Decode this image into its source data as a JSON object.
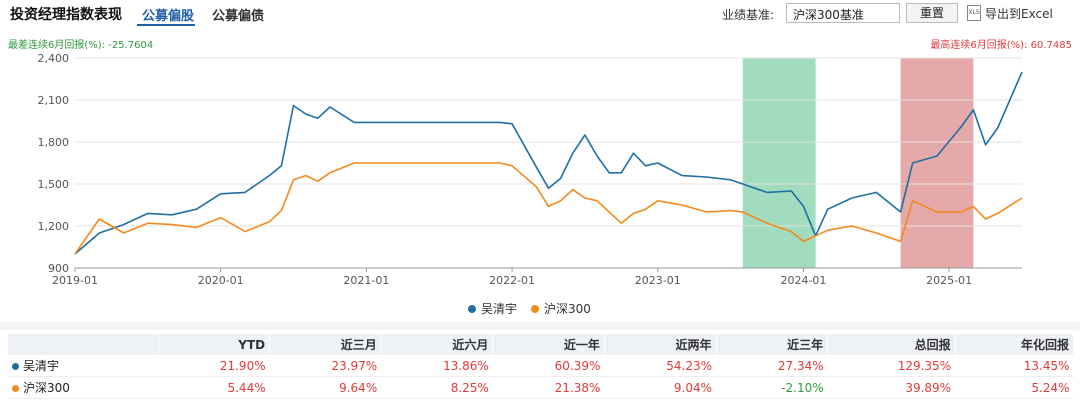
{
  "header": {
    "title": "投资经理指数表现",
    "tabs": [
      {
        "label": "公募偏股",
        "active": true
      },
      {
        "label": "公募偏债",
        "active": false
      }
    ],
    "benchmark_label": "业绩基准:",
    "benchmark_value": "沪深300基准",
    "reset_label": "重置",
    "export_icon": "excel-icon",
    "export_label": "导出到Excel"
  },
  "notes": {
    "worst": "最差连续6月回报(%): -25.7604",
    "best": "最高连续6月回报(%): 60.7485"
  },
  "colors": {
    "series1": "#1f6fa3",
    "series2": "#f28a1c",
    "worst_band": "#8fd6b2",
    "best_band": "#e09a9a",
    "positive": "#e23a3a",
    "negative": "#2f9a3c"
  },
  "chart_data": {
    "type": "line",
    "xlabel": "",
    "ylabel": "",
    "xlim": [
      "2019-01",
      "2025-07"
    ],
    "ylim": [
      900,
      2400
    ],
    "yticks": [
      "900",
      "1,200",
      "1,500",
      "1,800",
      "2,100",
      "2,400"
    ],
    "xticks": [
      "2019-01",
      "2020-01",
      "2021-01",
      "2022-01",
      "2023-01",
      "2024-01",
      "2025-01"
    ],
    "grid": true,
    "legend_position": "bottom",
    "bands": [
      {
        "start": "2023-08",
        "end": "2024-02",
        "meaning": "最差连续6月回报"
      },
      {
        "start": "2024-09",
        "end": "2025-03",
        "meaning": "最高连续6月回报"
      }
    ],
    "series": [
      {
        "name": "吴清宇",
        "points": [
          [
            "2019-01",
            1000
          ],
          [
            "2019-03",
            1150
          ],
          [
            "2019-05",
            1210
          ],
          [
            "2019-07",
            1290
          ],
          [
            "2019-09",
            1280
          ],
          [
            "2019-11",
            1320
          ],
          [
            "2020-01",
            1430
          ],
          [
            "2020-03",
            1440
          ],
          [
            "2020-05",
            1560
          ],
          [
            "2020-06",
            1630
          ],
          [
            "2020-07",
            2060
          ],
          [
            "2020-08",
            2000
          ],
          [
            "2020-09",
            1970
          ],
          [
            "2020-10",
            2050
          ],
          [
            "2020-12",
            1940
          ],
          [
            "2021-03",
            1940
          ],
          [
            "2021-06",
            1940
          ],
          [
            "2021-09",
            1940
          ],
          [
            "2021-12",
            1940
          ],
          [
            "2022-01",
            1930
          ],
          [
            "2022-03",
            1620
          ],
          [
            "2022-04",
            1470
          ],
          [
            "2022-05",
            1540
          ],
          [
            "2022-06",
            1720
          ],
          [
            "2022-07",
            1850
          ],
          [
            "2022-08",
            1700
          ],
          [
            "2022-09",
            1580
          ],
          [
            "2022-10",
            1580
          ],
          [
            "2022-11",
            1720
          ],
          [
            "2022-12",
            1630
          ],
          [
            "2023-01",
            1650
          ],
          [
            "2023-03",
            1560
          ],
          [
            "2023-05",
            1550
          ],
          [
            "2023-07",
            1530
          ],
          [
            "2023-08",
            1500
          ],
          [
            "2023-10",
            1440
          ],
          [
            "2023-12",
            1450
          ],
          [
            "2024-01",
            1340
          ],
          [
            "2024-02",
            1130
          ],
          [
            "2024-03",
            1320
          ],
          [
            "2024-05",
            1400
          ],
          [
            "2024-07",
            1440
          ],
          [
            "2024-09",
            1300
          ],
          [
            "2024-10",
            1650
          ],
          [
            "2024-12",
            1700
          ],
          [
            "2025-02",
            1910
          ],
          [
            "2025-03",
            2030
          ],
          [
            "2025-04",
            1780
          ],
          [
            "2025-05",
            1900
          ],
          [
            "2025-07",
            2300
          ]
        ]
      },
      {
        "name": "沪深300",
        "points": [
          [
            "2019-01",
            1000
          ],
          [
            "2019-03",
            1250
          ],
          [
            "2019-05",
            1150
          ],
          [
            "2019-07",
            1220
          ],
          [
            "2019-09",
            1210
          ],
          [
            "2019-11",
            1190
          ],
          [
            "2020-01",
            1260
          ],
          [
            "2020-03",
            1160
          ],
          [
            "2020-05",
            1230
          ],
          [
            "2020-06",
            1310
          ],
          [
            "2020-07",
            1530
          ],
          [
            "2020-08",
            1560
          ],
          [
            "2020-09",
            1520
          ],
          [
            "2020-10",
            1580
          ],
          [
            "2020-12",
            1650
          ],
          [
            "2021-03",
            1650
          ],
          [
            "2021-06",
            1650
          ],
          [
            "2021-09",
            1650
          ],
          [
            "2021-12",
            1650
          ],
          [
            "2022-01",
            1630
          ],
          [
            "2022-03",
            1480
          ],
          [
            "2022-04",
            1340
          ],
          [
            "2022-05",
            1380
          ],
          [
            "2022-06",
            1460
          ],
          [
            "2022-07",
            1400
          ],
          [
            "2022-08",
            1380
          ],
          [
            "2022-09",
            1300
          ],
          [
            "2022-10",
            1220
          ],
          [
            "2022-11",
            1290
          ],
          [
            "2022-12",
            1320
          ],
          [
            "2023-01",
            1380
          ],
          [
            "2023-03",
            1350
          ],
          [
            "2023-05",
            1300
          ],
          [
            "2023-07",
            1310
          ],
          [
            "2023-08",
            1300
          ],
          [
            "2023-10",
            1220
          ],
          [
            "2023-12",
            1160
          ],
          [
            "2024-01",
            1090
          ],
          [
            "2024-02",
            1130
          ],
          [
            "2024-03",
            1170
          ],
          [
            "2024-05",
            1200
          ],
          [
            "2024-07",
            1150
          ],
          [
            "2024-09",
            1090
          ],
          [
            "2024-10",
            1380
          ],
          [
            "2024-12",
            1300
          ],
          [
            "2025-02",
            1300
          ],
          [
            "2025-03",
            1340
          ],
          [
            "2025-04",
            1250
          ],
          [
            "2025-05",
            1290
          ],
          [
            "2025-07",
            1400
          ]
        ]
      }
    ]
  },
  "legend": [
    {
      "name": "吴清宇",
      "color": "#1f6fa3"
    },
    {
      "name": "沪深300",
      "color": "#f28a1c"
    }
  ],
  "table": {
    "headers": [
      "",
      "YTD",
      "近三月",
      "近六月",
      "近一年",
      "近两年",
      "近三年",
      "总回报",
      "年化回报"
    ],
    "rows": [
      {
        "name": "吴清宇",
        "color": "#1f6fa3",
        "cells": [
          "21.90%",
          "23.97%",
          "13.86%",
          "60.39%",
          "54.23%",
          "27.34%",
          "129.35%",
          "13.45%"
        ]
      },
      {
        "name": "沪深300",
        "color": "#f28a1c",
        "cells": [
          "5.44%",
          "9.64%",
          "8.25%",
          "21.38%",
          "9.04%",
          "-2.10%",
          "39.89%",
          "5.24%"
        ]
      }
    ]
  }
}
